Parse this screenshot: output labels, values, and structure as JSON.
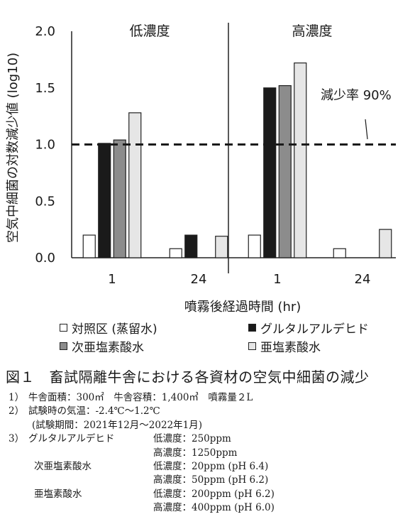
{
  "chart_data": {
    "type": "bar",
    "ylabel": "空気中細菌の対数減少値 (log10)",
    "xlabel": "噴霧後経過時間 (hr)",
    "ylim": [
      0,
      2.0
    ],
    "yticks": [
      "0.0",
      "0.5",
      "1.0",
      "1.5",
      "2.0"
    ],
    "panels": [
      {
        "title": "低濃度",
        "categories": [
          "1",
          "24"
        ]
      },
      {
        "title": "高濃度",
        "categories": [
          "1",
          "24"
        ]
      }
    ],
    "series": [
      {
        "name": "対照区 (蒸留水)",
        "color": "#ffffff",
        "values": [
          [
            0.2,
            0.08
          ],
          [
            0.2,
            0.08
          ]
        ]
      },
      {
        "name": "グルタルアルデヒド",
        "color": "#1a1a1a",
        "values": [
          [
            1.01,
            0.2
          ],
          [
            1.5,
            null
          ]
        ]
      },
      {
        "name": "次亜塩素酸水",
        "color": "#8c8c8c",
        "values": [
          [
            1.04,
            null
          ],
          [
            1.52,
            null
          ]
        ]
      },
      {
        "name": "亜塩素酸水",
        "color": "#e6e6e6",
        "values": [
          [
            1.28,
            0.19
          ],
          [
            1.72,
            0.25
          ]
        ]
      }
    ],
    "reference_line": {
      "y": 1.0,
      "style": "dashed",
      "label": "減少率 90%"
    },
    "legend_position": "bottom"
  },
  "caption": "図１　畜試隔離牛舎における各資材の空気中細菌の減少",
  "notes": [
    {
      "num": "1）",
      "text": "牛舎面積：300㎡　牛舎容積：1,400㎥　噴霧量２L",
      "detail": ""
    },
    {
      "num": "2）",
      "text": "試験時の気温：-2.4℃～1.2℃",
      "detail": ""
    },
    {
      "num": "",
      "text": "(試験期間：2021年12月～2022年1月)",
      "detail": ""
    },
    {
      "num": "3）",
      "text": "グルタルアルデヒド",
      "detail": "低濃度：250ppm"
    },
    {
      "num": "",
      "text": "",
      "detail": "高濃度：1250ppm"
    },
    {
      "num": "",
      "text": "次亜塩素酸水",
      "detail": "低濃度：20ppm (pH 6.4)"
    },
    {
      "num": "",
      "text": "",
      "detail": "高濃度：50ppm (pH 6.2)"
    },
    {
      "num": "",
      "text": "亜塩素酸水",
      "detail": "低濃度：200ppm (pH 6.2)"
    },
    {
      "num": "",
      "text": "",
      "detail": "高濃度：400ppm (pH 6.0)"
    }
  ]
}
